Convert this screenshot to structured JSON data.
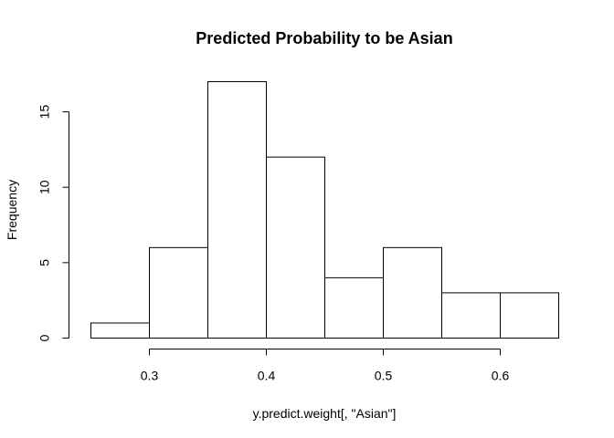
{
  "chart_data": {
    "type": "bar",
    "title": "Predicted Probability to be Asian",
    "xlabel": "y.predict.weight[, \"Asian\"]",
    "ylabel": "Frequency",
    "bins": [
      {
        "start": 0.25,
        "end": 0.3,
        "count": 1
      },
      {
        "start": 0.3,
        "end": 0.35,
        "count": 6
      },
      {
        "start": 0.35,
        "end": 0.4,
        "count": 17
      },
      {
        "start": 0.4,
        "end": 0.45,
        "count": 12
      },
      {
        "start": 0.45,
        "end": 0.5,
        "count": 4
      },
      {
        "start": 0.5,
        "end": 0.55,
        "count": 6
      },
      {
        "start": 0.55,
        "end": 0.6,
        "count": 3
      },
      {
        "start": 0.6,
        "end": 0.65,
        "count": 3
      }
    ],
    "xlim": [
      0.25,
      0.65
    ],
    "ylim": [
      0,
      17
    ],
    "x_ticks": [
      {
        "value": 0.3,
        "label": "0.3"
      },
      {
        "value": 0.4,
        "label": "0.4"
      },
      {
        "value": 0.5,
        "label": "0.5"
      },
      {
        "value": 0.6,
        "label": "0.6"
      }
    ],
    "y_ticks": [
      {
        "value": 0,
        "label": "0"
      },
      {
        "value": 5,
        "label": "5"
      },
      {
        "value": 10,
        "label": "10"
      },
      {
        "value": 15,
        "label": "15"
      }
    ],
    "bar_fill": "#ffffff",
    "bar_stroke": "#000000",
    "grid": false,
    "legend": "none"
  }
}
